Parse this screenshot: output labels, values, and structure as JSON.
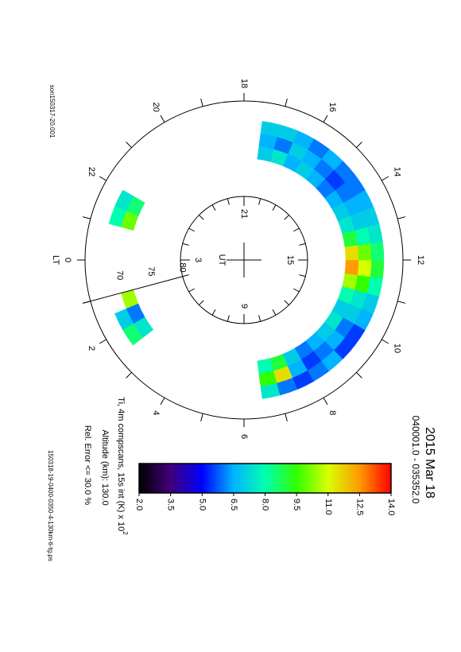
{
  "chart_data": {
    "type": "polar-heatmap",
    "title": "2015 Mar 18",
    "subtitle": "040001.0 - 035352.0",
    "colorbar_label": "Ti, 4m compscans, 15s int (K) x 10",
    "colorbar_label_exponent": "2",
    "altitude": "Altitude (km): 130.0",
    "error": "Rel. Error <= 30.0 %",
    "filename": "150318-19-0400-0350-4-130km-ti-tg.ps",
    "run_id": "son150317-20.001",
    "lt_label": "LT",
    "ut_label": "UT",
    "lt_ticks": [
      0,
      2,
      4,
      6,
      8,
      10,
      12,
      14,
      16,
      18,
      20,
      22
    ],
    "ut_ticks": [
      3,
      9,
      15,
      21
    ],
    "lat_lim": [
      90,
      65
    ],
    "lat_ticks": [
      80,
      75,
      70
    ],
    "lt_bins": [
      0,
      0.5,
      1,
      1.5,
      2,
      2.5,
      3,
      3.5,
      4,
      4.5,
      5,
      5.5,
      6,
      6.5,
      7,
      7.5,
      8,
      8.5,
      9,
      9.5,
      10,
      10.5,
      11,
      11.5,
      12,
      12.5,
      13,
      13.5,
      14,
      14.5,
      15,
      15.5,
      16,
      16.5,
      17,
      17.5,
      18,
      18.5,
      19,
      19.5,
      20,
      20.5,
      21,
      21.5,
      22,
      22.5,
      23,
      23.5,
      24
    ],
    "lat_bins": [
      68,
      70,
      72,
      74
    ],
    "values": [
      [
        null,
        null,
        null,
        7.0,
        8.5,
        null,
        null,
        null,
        null,
        null,
        null,
        null,
        null,
        7.5,
        6.0,
        5.5,
        6.0,
        6.5,
        5.5,
        5.5,
        6.5,
        7.0,
        8.0,
        9.0,
        8.5,
        7.5,
        7.0,
        6.5,
        6.0,
        6.0,
        6.5,
        6.0,
        6.5,
        7.0,
        7.0,
        null,
        null,
        null,
        null,
        null,
        null,
        null,
        null,
        null,
        7.5,
        8.0,
        null,
        null
      ],
      [
        null,
        null,
        10.5,
        6.0,
        7.5,
        null,
        null,
        null,
        null,
        null,
        null,
        null,
        null,
        9.5,
        11.5,
        6.5,
        5.5,
        6.0,
        6.5,
        6.0,
        7.0,
        7.5,
        9.5,
        11.0,
        10.0,
        8.0,
        7.0,
        6.5,
        6.0,
        5.5,
        6.0,
        6.5,
        7.0,
        6.0,
        6.5,
        null,
        null,
        null,
        null,
        null,
        null,
        null,
        null,
        null,
        8.5,
        10.0,
        null,
        null
      ],
      [
        null,
        null,
        null,
        null,
        null,
        null,
        null,
        null,
        null,
        null,
        null,
        null,
        null,
        8.0,
        9.0,
        7.0,
        6.0,
        6.5,
        7.0,
        7.5,
        7.0,
        8.0,
        10.5,
        12.5,
        11.5,
        9.0,
        7.5,
        7.0,
        6.5,
        6.0,
        6.5,
        7.0,
        6.5,
        7.5,
        7.0,
        null,
        null,
        null,
        null,
        null,
        null,
        null,
        null,
        null,
        null,
        null,
        null,
        null
      ]
    ],
    "colorbar_range": [
      2,
      14
    ],
    "colorbar_ticks": [
      {
        "value": 2,
        "label": "2.0"
      },
      3.5,
      {
        "value": 5,
        "label": "5.0"
      },
      6.5,
      {
        "value": 8,
        "label": "8.0"
      },
      9.5,
      {
        "value": 11,
        "label": "11.0"
      },
      12.5,
      {
        "value": 14,
        "label": "14.0"
      }
    ],
    "colormap": [
      "#000000",
      "#40007a",
      "#0000ff",
      "#00b4ff",
      "#00ffb0",
      "#30ff00",
      "#d8ff00",
      "#ff9a00",
      "#ff0000"
    ]
  }
}
